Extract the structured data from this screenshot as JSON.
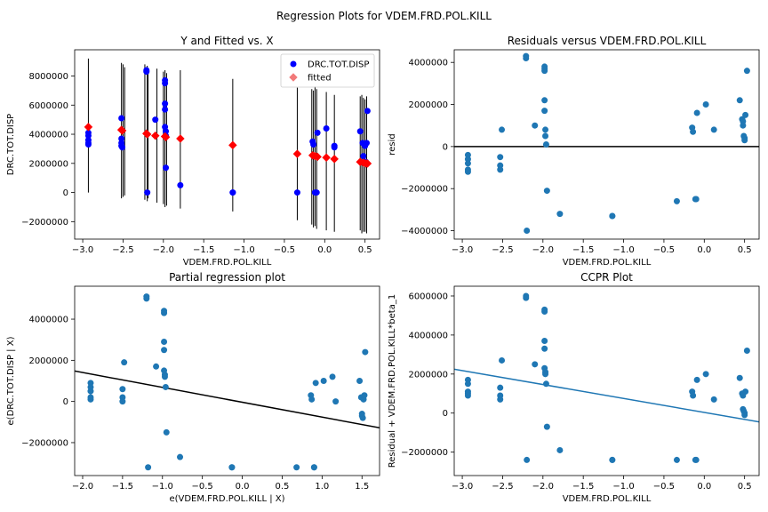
{
  "figure": {
    "suptitle": "Regression Plots for VDEM.FRD.POL.KILL"
  },
  "chart_data": [
    {
      "type": "scatter",
      "title": "Y and Fitted vs. X",
      "xlabel": "VDEM.FRD.POL.KILL",
      "ylabel": "DRC.TOT.DISP",
      "xlim": [
        -3.1,
        0.68
      ],
      "ylim": [
        -3200000,
        9800000
      ],
      "xticks": [
        -3.0,
        -2.5,
        -2.0,
        -1.5,
        -1.0,
        -0.5,
        0.0,
        0.5
      ],
      "xtick_labels": [
        "−3.0",
        "−2.5",
        "−2.0",
        "−1.5",
        "−1.0",
        "−0.5",
        "0.0",
        "0.5"
      ],
      "yticks": [
        -2000000,
        0,
        2000000,
        4000000,
        6000000,
        8000000
      ],
      "ytick_labels": [
        "−2000000",
        "0",
        "2000000",
        "4000000",
        "6000000",
        "8000000"
      ],
      "legend": {
        "position": "top-right",
        "entries": [
          "DRC.TOT.DISP",
          "fitted"
        ]
      },
      "series": [
        {
          "name": "DRC.TOT.DISP",
          "color": "#0000ff",
          "marker": "circle",
          "x": [
            -2.93,
            -2.93,
            -2.93,
            -2.93,
            -2.93,
            -2.52,
            -2.52,
            -2.52,
            -2.52,
            -2.51,
            -2.21,
            -2.21,
            -2.2,
            -2.1,
            -1.98,
            -1.98,
            -1.98,
            -1.98,
            -1.98,
            -1.97,
            -1.97,
            -1.97,
            -1.79,
            -1.14,
            -1.14,
            -0.34,
            -0.15,
            -0.14,
            -0.13,
            -0.12,
            -0.1,
            -0.09,
            0.02,
            0.12,
            0.12,
            0.44,
            0.47,
            0.48,
            0.49,
            0.5,
            0.51,
            0.52,
            0.53
          ],
          "y": [
            4100000,
            3900000,
            3600000,
            3400000,
            3300000,
            5100000,
            3700000,
            3400000,
            3200000,
            3100000,
            8400000,
            8300000,
            0,
            5000000,
            7700000,
            7500000,
            6100000,
            5700000,
            4500000,
            4200000,
            3900000,
            1700000,
            500000,
            0,
            0,
            0,
            3500000,
            3300000,
            2500000,
            0,
            0,
            4100000,
            4400000,
            3200000,
            3100000,
            4200000,
            3400000,
            2500000,
            3300000,
            3200000,
            2100000,
            3400000,
            5600000
          ]
        },
        {
          "name": "fitted",
          "color": "#ff0000",
          "marker": "diamond",
          "x": [
            -2.93,
            -2.52,
            -2.51,
            -2.21,
            -2.2,
            -2.1,
            -1.98,
            -1.97,
            -1.79,
            -1.14,
            -0.34,
            -0.15,
            -0.12,
            -0.09,
            0.02,
            0.12,
            0.44,
            0.48,
            0.51,
            0.53
          ],
          "y": [
            4500000,
            4300000,
            4250000,
            4050000,
            4000000,
            3900000,
            3850000,
            3800000,
            3700000,
            3250000,
            2650000,
            2550000,
            2500000,
            2450000,
            2400000,
            2300000,
            2100000,
            2050000,
            2000000,
            1990000
          ]
        }
      ],
      "error_bars": {
        "x": [
          -2.93,
          -2.52,
          -2.5,
          -2.48,
          -2.23,
          -2.2,
          -2.19,
          -2.08,
          -2.0,
          -1.98,
          -1.96,
          -1.79,
          -1.14,
          -0.34,
          -0.16,
          -0.14,
          -0.12,
          -0.1,
          0.02,
          0.12,
          0.44,
          0.46,
          0.48,
          0.5,
          0.52
        ],
        "low": [
          0,
          -400000,
          -300000,
          -200000,
          -500000,
          -600000,
          -400000,
          -700000,
          -800000,
          -1000000,
          -900000,
          -1100000,
          -1300000,
          -1900000,
          -2200000,
          -2400000,
          -2300000,
          -2500000,
          -2600000,
          -2700000,
          -2600000,
          -2800000,
          -2700000,
          -2700000,
          -2800000
        ],
        "high": [
          9200000,
          8900000,
          8800000,
          8600000,
          8800000,
          8700000,
          8500000,
          8500000,
          8300000,
          8400000,
          8200000,
          8400000,
          7800000,
          7200000,
          7100000,
          7000000,
          7300000,
          7100000,
          6900000,
          6700000,
          6600000,
          6700000,
          6500000,
          6400000,
          6600000
        ]
      }
    },
    {
      "type": "scatter",
      "title": "Residuals versus VDEM.FRD.POL.KILL",
      "xlabel": "VDEM.FRD.POL.KILL",
      "ylabel": "resid",
      "xlim": [
        -3.1,
        0.68
      ],
      "ylim": [
        -4400000,
        4600000
      ],
      "xticks": [
        -3.0,
        -2.5,
        -2.0,
        -1.5,
        -1.0,
        -0.5,
        0.0,
        0.5
      ],
      "xtick_labels": [
        "−3.0",
        "−2.5",
        "−2.0",
        "−1.5",
        "−1.0",
        "−0.5",
        "0.0",
        "0.5"
      ],
      "yticks": [
        -4000000,
        -2000000,
        0,
        2000000,
        4000000
      ],
      "ytick_labels": [
        "−4000000",
        "−2000000",
        "0",
        "2000000",
        "4000000"
      ],
      "hline": 0,
      "series": [
        {
          "color": "#1f77b4",
          "x": [
            -2.93,
            -2.93,
            -2.93,
            -2.93,
            -2.93,
            -2.53,
            -2.53,
            -2.53,
            -2.51,
            -2.21,
            -2.21,
            -2.2,
            -2.1,
            -1.98,
            -1.98,
            -1.98,
            -1.98,
            -1.98,
            -1.97,
            -1.97,
            -1.96,
            -1.95,
            -1.79,
            -1.14,
            -1.14,
            -0.34,
            -0.15,
            -0.14,
            -0.11,
            -0.1,
            -0.09,
            0.02,
            0.12,
            0.44,
            0.47,
            0.48,
            0.48,
            0.49,
            0.5,
            0.5,
            0.51,
            0.53
          ],
          "y": [
            -400000,
            -600000,
            -800000,
            -1100000,
            -1200000,
            -500000,
            -900000,
            -1100000,
            800000,
            4300000,
            4200000,
            -4000000,
            1000000,
            3800000,
            3700000,
            3600000,
            2200000,
            1700000,
            800000,
            500000,
            100000,
            -2100000,
            -3200000,
            -3300000,
            -3300000,
            -2600000,
            900000,
            700000,
            -2500000,
            -2500000,
            1600000,
            2000000,
            800000,
            2200000,
            1300000,
            1200000,
            1000000,
            500000,
            400000,
            300000,
            1500000,
            3600000
          ]
        }
      ]
    },
    {
      "type": "scatter",
      "title": "Partial regression plot",
      "xlabel": "e(VDEM.FRD.POL.KILL | X)",
      "ylabel": "e(DRC.TOT.DISP | X)",
      "xlim": [
        -2.1,
        1.72
      ],
      "ylim": [
        -3600000,
        5600000
      ],
      "xticks": [
        -2.0,
        -1.5,
        -1.0,
        -0.5,
        0.0,
        0.5,
        1.0,
        1.5
      ],
      "xtick_labels": [
        "−2.0",
        "−1.5",
        "−1.0",
        "−0.5",
        "0.0",
        "0.5",
        "1.0",
        "1.5"
      ],
      "yticks": [
        -2000000,
        0,
        2000000,
        4000000
      ],
      "ytick_labels": [
        "−2000000",
        "0",
        "2000000",
        "4000000"
      ],
      "fit_line": {
        "x": [
          -2.1,
          1.72
        ],
        "y": [
          1480000,
          -1280000
        ],
        "color": "#000000"
      },
      "series": [
        {
          "color": "#1f77b4",
          "x": [
            -1.9,
            -1.9,
            -1.9,
            -1.9,
            -1.9,
            -1.5,
            -1.5,
            -1.5,
            -1.48,
            -1.2,
            -1.2,
            -1.18,
            -1.08,
            -0.98,
            -0.98,
            -0.98,
            -0.98,
            -0.98,
            -0.97,
            -0.97,
            -0.96,
            -0.95,
            -0.78,
            -0.13,
            -0.13,
            0.68,
            0.86,
            0.87,
            0.9,
            0.9,
            0.92,
            1.02,
            1.13,
            1.17,
            1.47,
            1.49,
            1.5,
            1.5,
            1.51,
            1.52,
            1.53,
            1.54
          ],
          "y": [
            900000,
            700000,
            500000,
            200000,
            100000,
            600000,
            200000,
            0,
            1900000,
            5100000,
            5000000,
            -3200000,
            1700000,
            4400000,
            4300000,
            2900000,
            2500000,
            1500000,
            1300000,
            1200000,
            700000,
            -1500000,
            -2700000,
            -3200000,
            -3200000,
            -3200000,
            300000,
            100000,
            -3200000,
            -3200000,
            900000,
            1000000,
            1200000,
            0,
            1000000,
            200000,
            -600000,
            -700000,
            -800000,
            100000,
            300000,
            2400000
          ]
        }
      ]
    },
    {
      "type": "scatter",
      "title": "CCPR Plot",
      "xlabel": "VDEM.FRD.POL.KILL",
      "ylabel": "Residual + VDEM.FRD.POL.KILL*beta_1",
      "xlim": [
        -3.1,
        0.68
      ],
      "ylim": [
        -3200000,
        6500000
      ],
      "xticks": [
        -3.0,
        -2.5,
        -2.0,
        -1.5,
        -1.0,
        -0.5,
        0.0,
        0.5
      ],
      "xtick_labels": [
        "−3.0",
        "−2.5",
        "−2.0",
        "−1.5",
        "−1.0",
        "−0.5",
        "0.0",
        "0.5"
      ],
      "yticks": [
        -2000000,
        0,
        2000000,
        4000000,
        6000000
      ],
      "ytick_labels": [
        "−2000000",
        "0",
        "2000000",
        "4000000",
        "6000000"
      ],
      "fit_line": {
        "x": [
          -3.1,
          0.68
        ],
        "y": [
          2250000,
          -450000
        ],
        "color": "#1f77b4"
      },
      "series": [
        {
          "color": "#1f77b4",
          "x": [
            -2.93,
            -2.93,
            -2.93,
            -2.93,
            -2.93,
            -2.53,
            -2.53,
            -2.53,
            -2.51,
            -2.21,
            -2.21,
            -2.2,
            -2.1,
            -1.98,
            -1.98,
            -1.98,
            -1.98,
            -1.98,
            -1.97,
            -1.97,
            -1.96,
            -1.95,
            -1.79,
            -1.14,
            -1.14,
            -0.34,
            -0.15,
            -0.14,
            -0.11,
            -0.1,
            -0.09,
            0.02,
            0.12,
            0.44,
            0.47,
            0.48,
            0.48,
            0.49,
            0.5,
            0.5,
            0.51,
            0.53
          ],
          "y": [
            1700000,
            1500000,
            1100000,
            1000000,
            900000,
            1300000,
            900000,
            700000,
            2700000,
            6000000,
            5900000,
            -2400000,
            2500000,
            5300000,
            5200000,
            3700000,
            3300000,
            2300000,
            2100000,
            2000000,
            1500000,
            -700000,
            -1900000,
            -2400000,
            -2400000,
            -2400000,
            1100000,
            900000,
            -2400000,
            -2400000,
            1700000,
            2000000,
            700000,
            1800000,
            1000000,
            900000,
            200000,
            100000,
            0,
            -100000,
            1100000,
            3200000
          ]
        }
      ]
    }
  ]
}
